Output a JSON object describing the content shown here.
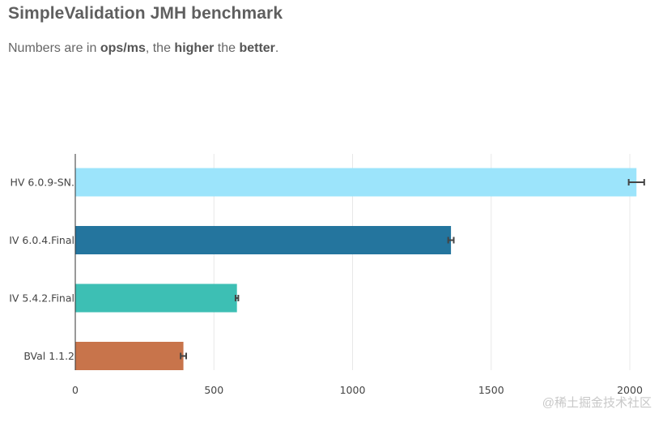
{
  "header": {
    "title": "SimpleValidation JMH benchmark",
    "subtitle": {
      "p1": "Numbers are in ",
      "b1": "ops/ms",
      "p2": ", the ",
      "b2": "higher",
      "p3": " the ",
      "b3": "better",
      "p4": "."
    }
  },
  "watermark": "@稀土掘金技术社区",
  "chart_data": {
    "type": "bar",
    "orientation": "horizontal",
    "title": "SimpleValidation JMH benchmark",
    "xlabel": "",
    "ylabel": "",
    "xlim": [
      0,
      2100
    ],
    "xticks": [
      0,
      500,
      1000,
      1500,
      2000
    ],
    "xtick_labels": [
      "0",
      "500",
      "1000",
      "1500",
      "2000"
    ],
    "grid": "vertical",
    "categories": [
      "HV 6.0.9-SN.",
      "IV 6.0.4.Final",
      "IV 5.4.2.Final",
      "BVal 1.1.2"
    ],
    "values": [
      2024,
      1355,
      583,
      390
    ],
    "errors": [
      28,
      10,
      5,
      10
    ],
    "colors": [
      "#9ce4fb",
      "#24759e",
      "#3dbfb4",
      "#c8744b"
    ]
  }
}
